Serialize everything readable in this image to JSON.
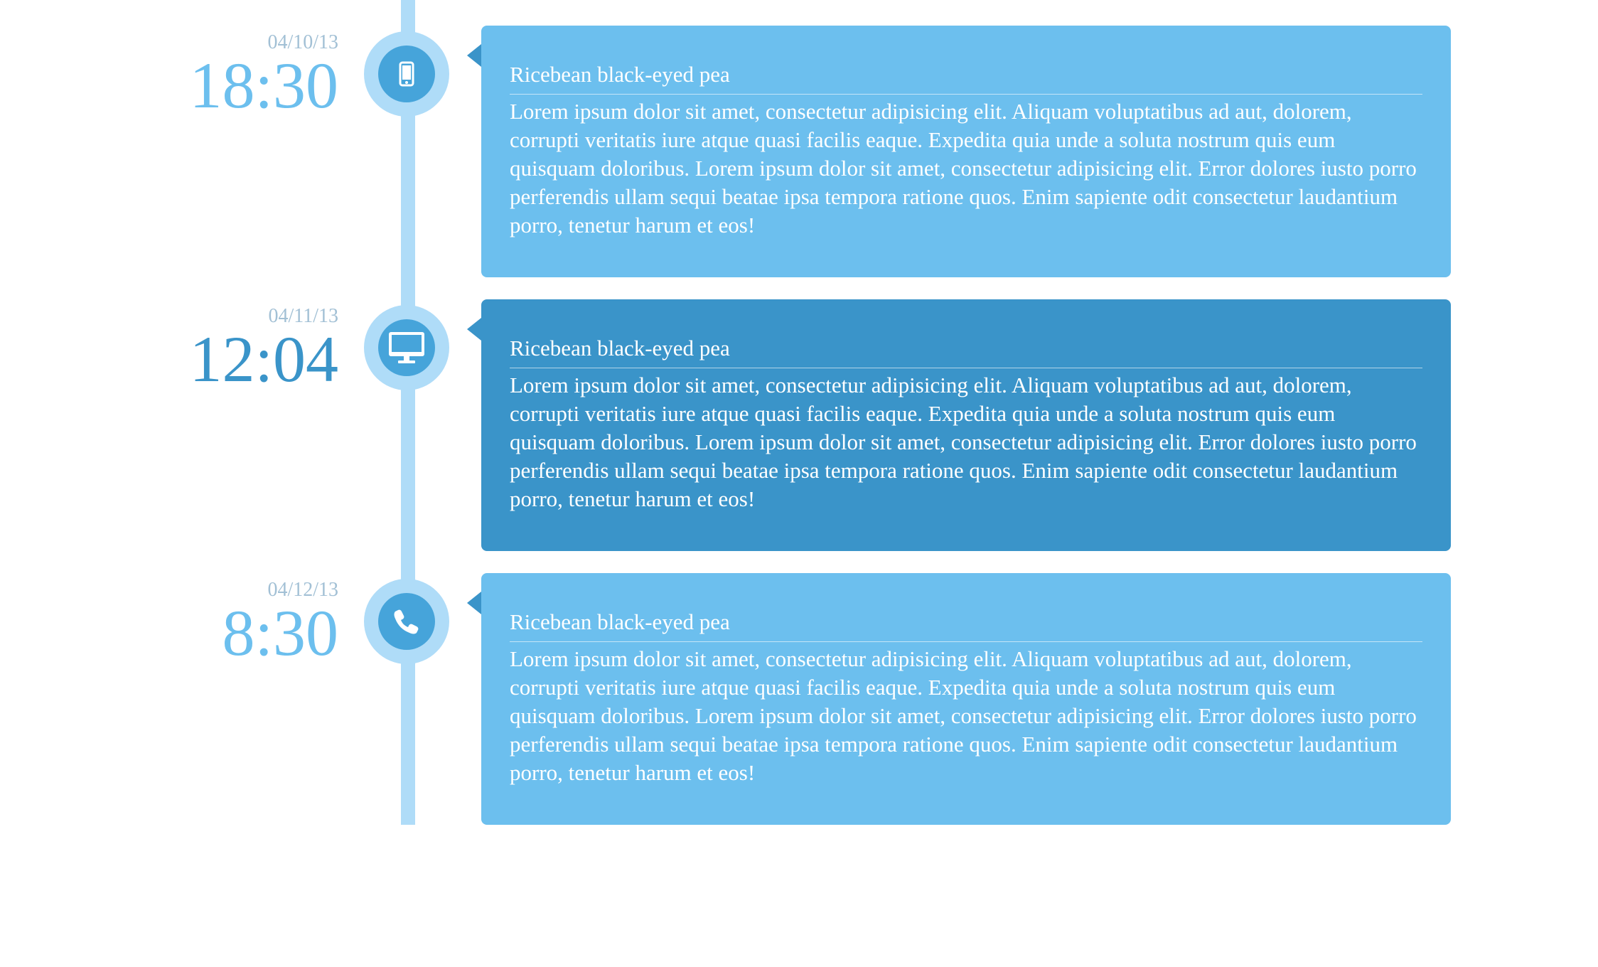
{
  "colors": {
    "line": "#afdcf8",
    "icon_ring": "#afdcf8",
    "icon_fill": "#46a4da",
    "card_light": "#6cbfee",
    "card_dark": "#3a94c9",
    "date_text": "#a2c0d5",
    "clock_light": "#6cbfee",
    "clock_dark": "#3a94c9"
  },
  "entries": [
    {
      "date": "04/10/13",
      "time": "18:30",
      "icon": "mobile-phone-icon",
      "title": "Ricebean black-eyed pea",
      "body": "Lorem ipsum dolor sit amet, consectetur adipisicing elit. Aliquam voluptatibus ad aut, dolorem, corrupti veritatis iure atque quasi facilis eaque. Expedita quia unde a soluta nostrum quis eum quisquam doloribus. Lorem ipsum dolor sit amet, consectetur adipisicing elit. Error dolores iusto porro perferendis ullam sequi beatae ipsa tempora ratione quos. Enim sapiente odit consectetur laudantium porro, tenetur harum et eos!"
    },
    {
      "date": "04/11/13",
      "time": "12:04",
      "icon": "desktop-monitor-icon",
      "title": "Ricebean black-eyed pea",
      "body": "Lorem ipsum dolor sit amet, consectetur adipisicing elit. Aliquam voluptatibus ad aut, dolorem, corrupti veritatis iure atque quasi facilis eaque. Expedita quia unde a soluta nostrum quis eum quisquam doloribus. Lorem ipsum dolor sit amet, consectetur adipisicing elit. Error dolores iusto porro perferendis ullam sequi beatae ipsa tempora ratione quos. Enim sapiente odit consectetur laudantium porro, tenetur harum et eos!"
    },
    {
      "date": "04/12/13",
      "time": "8:30",
      "icon": "phone-handset-icon",
      "title": "Ricebean black-eyed pea",
      "body": "Lorem ipsum dolor sit amet, consectetur adipisicing elit. Aliquam voluptatibus ad aut, dolorem, corrupti veritatis iure atque quasi facilis eaque. Expedita quia unde a soluta nostrum quis eum quisquam doloribus. Lorem ipsum dolor sit amet, consectetur adipisicing elit. Error dolores iusto porro perferendis ullam sequi beatae ipsa tempora ratione quos. Enim sapiente odit consectetur laudantium porro, tenetur harum et eos!"
    }
  ]
}
